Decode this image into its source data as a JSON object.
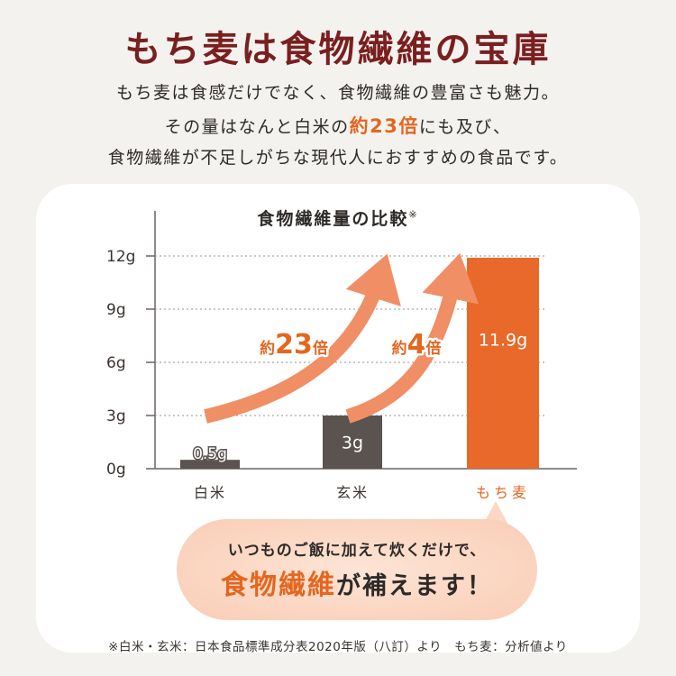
{
  "title": "もち麦は食物繊維の宝庫",
  "intro": {
    "line1": "もち麦は食感だけでなく、食物繊維の豊富さも魅力。",
    "line2_pre": "その量はなんと白米の",
    "line2_highlight": "約23倍",
    "line2_post": "にも及び、",
    "line3": "食物繊維が不足しがちな現代人におすすめの食品です。"
  },
  "chart_data": {
    "type": "bar",
    "title": "食物繊維量の比較",
    "title_note": "※",
    "categories": [
      "白米",
      "玄米",
      "もち麦"
    ],
    "values": [
      0.5,
      3,
      11.9
    ],
    "value_labels": [
      "0.5g",
      "3g",
      "11.9g"
    ],
    "y_ticks": [
      0,
      3,
      6,
      9,
      12
    ],
    "y_tick_labels": [
      "0g",
      "3g",
      "6g",
      "9g",
      "12g"
    ],
    "ylim": [
      0,
      12
    ],
    "grid": true,
    "annotations": [
      {
        "prefix": "約",
        "number": "23",
        "suffix": "倍"
      },
      {
        "prefix": "約",
        "number": "4",
        "suffix": "倍"
      }
    ],
    "colors": {
      "bar_default": "#5a5350",
      "bar_highlight": "#e8692a",
      "label_highlight": "#e4661f",
      "arrow": "#f08e66",
      "grid": "#9a928c"
    }
  },
  "callout": {
    "line1": "いつものご飯に加えて炊くだけで、",
    "line2_emphasis": "食物繊維",
    "line2_rest": "が補えます！"
  },
  "footnote": "※白米・玄米：日本食品標準成分表2020年版（八訂）より　もち麦：分析値より"
}
